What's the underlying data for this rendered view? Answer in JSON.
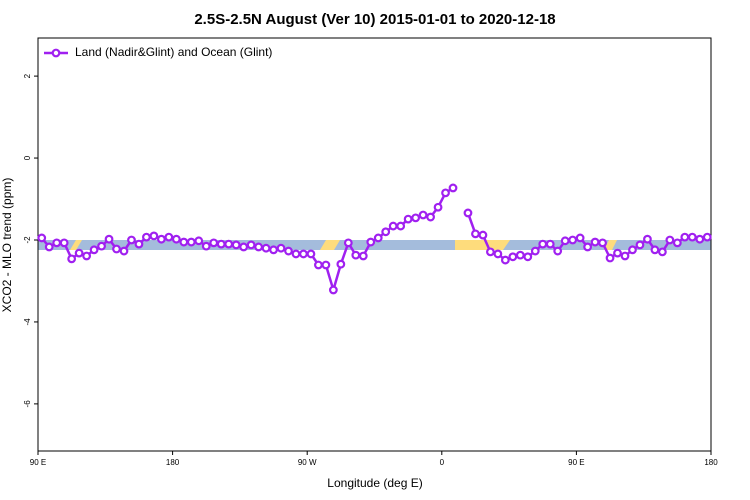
{
  "chart_data": {
    "type": "line",
    "title": "2.5S-2.5N August (Ver 10)   2015-01-01 to 2020-12-18",
    "x_label": "Longitude (deg E)",
    "y_label": "XCO2 - MLO trend (ppm)",
    "x": [
      92.5,
      97.5,
      102.5,
      107.5,
      112.5,
      117.5,
      122.5,
      127.5,
      132.5,
      137.5,
      142.5,
      147.5,
      152.5,
      157.5,
      162.5,
      167.5,
      172.5,
      177.5,
      182.5,
      187.5,
      192.5,
      197.5,
      202.5,
      207.5,
      212.5,
      217.5,
      222.5,
      227.5,
      232.5,
      237.5,
      242.5,
      247.5,
      252.5,
      257.5,
      262.5,
      267.5,
      272.5,
      277.5,
      282.5,
      287.5,
      292.5,
      297.5,
      302.5,
      307.5,
      312.5,
      317.5,
      322.5,
      327.5,
      332.5,
      337.5,
      342.5,
      347.5,
      352.5,
      357.5,
      362.5,
      367.5,
      372.5,
      377.5,
      382.5,
      387.5,
      392.5,
      397.5,
      402.5,
      407.5,
      412.5,
      417.5,
      422.5,
      427.5,
      432.5,
      437.5,
      442.5,
      447.5,
      452.5,
      457.5,
      462.5,
      467.5,
      472.5,
      477.5,
      482.5,
      487.5,
      492.5,
      497.5,
      502.5,
      507.5,
      512.5,
      517.5,
      522.5,
      527.5,
      532.5,
      537.5
    ],
    "series": [
      {
        "name": "Land (Nadir&Glint) and Ocean (Glint)",
        "color": "#a020f0",
        "values": [
          -1.95,
          -2.17,
          -2.07,
          -2.07,
          -2.46,
          -2.32,
          -2.39,
          -2.24,
          -2.15,
          -1.98,
          -2.22,
          -2.27,
          -2.0,
          -2.1,
          -1.93,
          -1.9,
          -1.98,
          -1.93,
          -1.98,
          -2.05,
          -2.05,
          -2.02,
          -2.15,
          -2.07,
          -2.1,
          -2.1,
          -2.12,
          -2.17,
          -2.12,
          -2.17,
          -2.2,
          -2.24,
          -2.2,
          -2.27,
          -2.34,
          -2.34,
          -2.34,
          -2.61,
          -2.61,
          -3.22,
          -2.59,
          -2.07,
          -2.37,
          -2.39,
          -2.05,
          -1.95,
          -1.8,
          -1.66,
          -1.66,
          -1.49,
          -1.46,
          -1.39,
          -1.44,
          -1.2,
          -0.85,
          -0.73,
          null,
          -1.34,
          -1.85,
          -1.88,
          -2.29,
          -2.34,
          -2.49,
          -2.41,
          -2.37,
          -2.41,
          -2.27,
          -2.1,
          -2.1,
          -2.27,
          -2.02,
          -2.0,
          -1.95,
          -2.17,
          -2.05,
          -2.07,
          -2.44,
          -2.32,
          -2.39,
          -2.24,
          -2.12,
          -1.98,
          -2.24,
          -2.29,
          -2.0,
          -2.07,
          -1.93,
          -1.93,
          -1.98,
          -1.93
        ]
      }
    ],
    "xlim": [
      90,
      540
    ],
    "xticks": [
      {
        "value": 90,
        "label": "90 E"
      },
      180,
      {
        "value": 270,
        "label": "90 W"
      },
      {
        "value": 360,
        "label": "0"
      },
      {
        "value": 450,
        "label": "90 E"
      },
      {
        "value": 540,
        "label": "180"
      }
    ],
    "ylim": [
      -7.15,
      2.93
    ],
    "yticks": [
      2,
      0,
      -2,
      -4,
      -6
    ],
    "legend": "top-left"
  }
}
